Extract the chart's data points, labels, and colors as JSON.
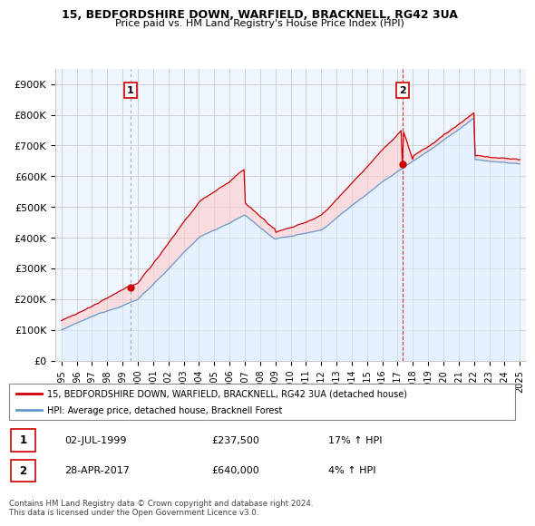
{
  "title1": "15, BEDFORDSHIRE DOWN, WARFIELD, BRACKNELL, RG42 3UA",
  "title2": "Price paid vs. HM Land Registry's House Price Index (HPI)",
  "ylabel_ticks": [
    "£0",
    "£100K",
    "£200K",
    "£300K",
    "£400K",
    "£500K",
    "£600K",
    "£700K",
    "£800K",
    "£900K"
  ],
  "ytick_vals": [
    0,
    100000,
    200000,
    300000,
    400000,
    500000,
    600000,
    700000,
    800000,
    900000
  ],
  "ylim": [
    0,
    950000
  ],
  "xlim_min": 1994.6,
  "xlim_max": 2025.4,
  "sale1_date": 1999.5,
  "sale1_price": 237500,
  "sale2_date": 2017.33,
  "sale2_price": 640000,
  "legend_red": "15, BEDFORDSHIRE DOWN, WARFIELD, BRACKNELL, RG42 3UA (detached house)",
  "legend_blue": "HPI: Average price, detached house, Bracknell Forest",
  "table_row1": [
    "1",
    "02-JUL-1999",
    "£237,500",
    "17% ↑ HPI"
  ],
  "table_row2": [
    "2",
    "28-APR-2017",
    "£640,000",
    "4% ↑ HPI"
  ],
  "footer": "Contains HM Land Registry data © Crown copyright and database right 2024.\nThis data is licensed under the Open Government Licence v3.0.",
  "red_color": "#cc0000",
  "blue_color": "#6699cc",
  "blue_fill": "#ddeeff",
  "grid_color": "#cccccc",
  "vline1_color": "#aaaaaa",
  "vline2_color": "#cc0000",
  "label_border_color": "#cc0000",
  "bg_color": "#ffffff",
  "chart_bg": "#f0f6ff"
}
